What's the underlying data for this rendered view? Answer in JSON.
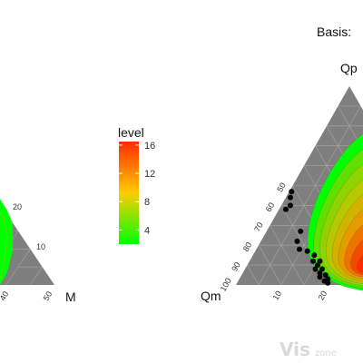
{
  "chart_data": [
    {
      "type": "ternary-density",
      "panel": "left (cropped)",
      "right_vertex_label": "M",
      "tick_labels_right_edge": [
        "10",
        "20"
      ],
      "tick_labels_bottom_edge": [
        "50",
        "40"
      ],
      "density_fill": "green contour region"
    },
    {
      "type": "ternary-density",
      "panel": "right (cropped)",
      "title": "Basis:",
      "top_vertex_label": "Qp",
      "left_vertex_label": "Qm",
      "tick_labels_left_edge": [
        "50",
        "60",
        "70",
        "80",
        "90",
        "100"
      ],
      "tick_labels_bottom_edge": [
        "10",
        "20"
      ],
      "points": [
        {
          "qp": 47,
          "qm": 52
        },
        {
          "qp": 44,
          "qm": 54
        },
        {
          "qp": 40,
          "qm": 56
        },
        {
          "qp": 38,
          "qm": 59
        },
        {
          "qp": 27,
          "qm": 58
        },
        {
          "qp": 22,
          "qm": 62
        },
        {
          "qp": 18,
          "qm": 63
        },
        {
          "qp": 17,
          "qm": 60
        },
        {
          "qp": 15,
          "qm": 58
        },
        {
          "qp": 12,
          "qm": 60
        },
        {
          "qp": 12,
          "qm": 57
        },
        {
          "qp": 10,
          "qm": 59
        },
        {
          "qp": 8,
          "qm": 61
        },
        {
          "qp": 8,
          "qm": 58
        },
        {
          "qp": 6,
          "qm": 60
        },
        {
          "qp": 5,
          "qm": 58
        },
        {
          "qp": 4,
          "qm": 61
        },
        {
          "qp": 3,
          "qm": 58
        },
        {
          "qp": 2,
          "qm": 60
        },
        {
          "qp": 1,
          "qm": 59
        }
      ]
    }
  ],
  "legend": {
    "title": "level",
    "ticks": [
      {
        "label": "16",
        "value": 16
      },
      {
        "label": "12",
        "value": 12
      },
      {
        "label": "8",
        "value": 8
      },
      {
        "label": "4",
        "value": 4
      }
    ],
    "range": [
      2,
      16.5
    ],
    "colors": [
      "#00ff00",
      "#ffcc00",
      "#ff2a00"
    ]
  },
  "colors": {
    "triangle_bg": "#7f7f7f",
    "grid": "#a6a6a6",
    "points": "#000000",
    "contour_levels": [
      "#00ff00",
      "#5fe000",
      "#8fd400",
      "#b5c800",
      "#d2b400",
      "#e59a00",
      "#ef7300",
      "#f44a00",
      "#ff2a00"
    ]
  },
  "watermark": {
    "main": "Vis",
    "sub": "zone"
  }
}
